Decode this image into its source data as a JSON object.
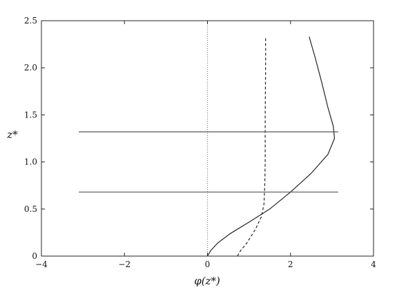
{
  "chart_data": {
    "type": "line",
    "title": "",
    "xlabel": "φ(z*)",
    "ylabel": "z*",
    "xlim": [
      -4,
      4
    ],
    "ylim": [
      0,
      2.5
    ],
    "grid": false,
    "legend": "none",
    "x_ticks": [
      -4,
      -2,
      0,
      2,
      4
    ],
    "x_tick_labels": [
      "−4",
      "−2",
      "0",
      "2",
      "4"
    ],
    "y_ticks": [
      0,
      0.5,
      1.0,
      1.5,
      2.0,
      2.5
    ],
    "y_tick_labels": [
      "0",
      "0.5",
      "1.0",
      "1.5",
      "2.0",
      "2.5"
    ],
    "series": [
      {
        "style": "solid",
        "color": "#222222",
        "points": [
          [
            0.0,
            0.0
          ],
          [
            0.08,
            0.06
          ],
          [
            0.25,
            0.14
          ],
          [
            0.55,
            0.24
          ],
          [
            1.0,
            0.36
          ],
          [
            1.5,
            0.5
          ],
          [
            2.0,
            0.68
          ],
          [
            2.5,
            0.88
          ],
          [
            2.9,
            1.08
          ],
          [
            3.06,
            1.25
          ],
          [
            3.03,
            1.38
          ],
          [
            2.9,
            1.58
          ],
          [
            2.75,
            1.85
          ],
          [
            2.6,
            2.1
          ],
          [
            2.45,
            2.33
          ]
        ]
      },
      {
        "style": "dashed",
        "color": "#222222",
        "points": [
          [
            0.72,
            0.0
          ],
          [
            0.8,
            0.06
          ],
          [
            0.95,
            0.14
          ],
          [
            1.15,
            0.28
          ],
          [
            1.3,
            0.42
          ],
          [
            1.36,
            0.55
          ],
          [
            1.38,
            0.75
          ],
          [
            1.39,
            1.0
          ],
          [
            1.39,
            1.5
          ],
          [
            1.4,
            2.0
          ],
          [
            1.4,
            2.33
          ]
        ]
      },
      {
        "style": "dotted",
        "color": "#777777",
        "points": [
          [
            0.0,
            0.0
          ],
          [
            0.0,
            2.5
          ]
        ]
      },
      {
        "style": "solid",
        "color": "#555555",
        "points": [
          [
            -3.1,
            1.32
          ],
          [
            3.15,
            1.32
          ]
        ]
      },
      {
        "style": "solid",
        "color": "#555555",
        "points": [
          [
            -3.1,
            0.68
          ],
          [
            3.15,
            0.68
          ]
        ]
      }
    ]
  }
}
